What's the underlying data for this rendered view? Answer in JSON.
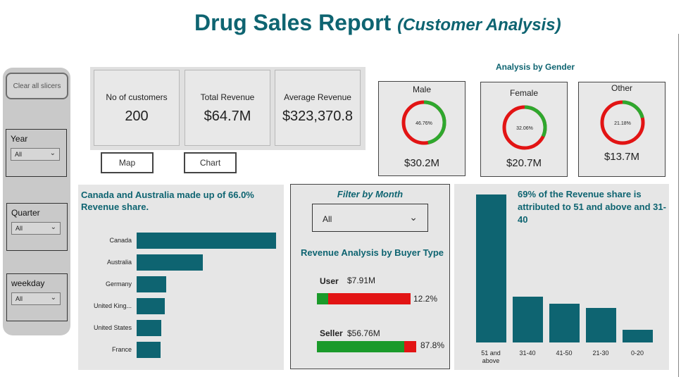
{
  "header": {
    "title": "Drug Sales Report",
    "subtitle": "(Customer Analysis)"
  },
  "slicers": {
    "clear_label": "Clear all slicers",
    "year": {
      "label": "Year",
      "value": "All"
    },
    "quarter": {
      "label": "Quarter",
      "value": "All"
    },
    "weekday": {
      "label": "weekday",
      "value": "All"
    }
  },
  "kpis": [
    {
      "label": "No of customers",
      "value": "200"
    },
    {
      "label": "Total Revenue",
      "value": "$64.7M"
    },
    {
      "label": "Average Revenue",
      "value": "$323,370.8"
    }
  ],
  "buttons": {
    "map": "Map",
    "chart": "Chart"
  },
  "gender": {
    "title": "Analysis by Gender",
    "cards": [
      {
        "label": "Male",
        "pct_text": "46.76%",
        "pct": 0.4676,
        "value": "$30.2M"
      },
      {
        "label": "Female",
        "pct_text": "32.06%",
        "pct": 0.3206,
        "value": "$20.7M"
      },
      {
        "label": "Other",
        "pct_text": "21.18%",
        "pct": 0.2118,
        "value": "$13.7M"
      }
    ],
    "colors": {
      "fill": "#2ea82e",
      "rest": "#e21414"
    }
  },
  "country": {
    "heading": "Canada and Australia made up of 66.0% Revenue share.",
    "chart_data": {
      "type": "bar",
      "orientation": "horizontal",
      "categories": [
        "Canada",
        "Australia",
        "Germany",
        "United King...",
        "United States",
        "France"
      ],
      "values": [
        100,
        47.5,
        21,
        20,
        17.5,
        17
      ],
      "unit": "relative"
    }
  },
  "month": {
    "title": "Filter by Month",
    "value": "All",
    "buyer_title": "Revenue Analysis by Buyer Type",
    "buyers": [
      {
        "name": "User",
        "value": "$7.91M",
        "pct_text": "12.2%",
        "pct": 0.122
      },
      {
        "name": "Seller",
        "value": "$56.76M",
        "pct_text": "87.8%",
        "pct": 0.878
      }
    ]
  },
  "age": {
    "heading": "69% of the Revenue share is attributed to 51 and above and 31-40",
    "chart_data": {
      "type": "bar",
      "categories": [
        "51 and above",
        "31-40",
        "41-50",
        "21-30",
        "0-20"
      ],
      "values": [
        100,
        31,
        26,
        23.5,
        8.5
      ],
      "unit": "relative"
    }
  },
  "colors": {
    "accent": "#0e6471",
    "panel": "#e6e6e6"
  }
}
